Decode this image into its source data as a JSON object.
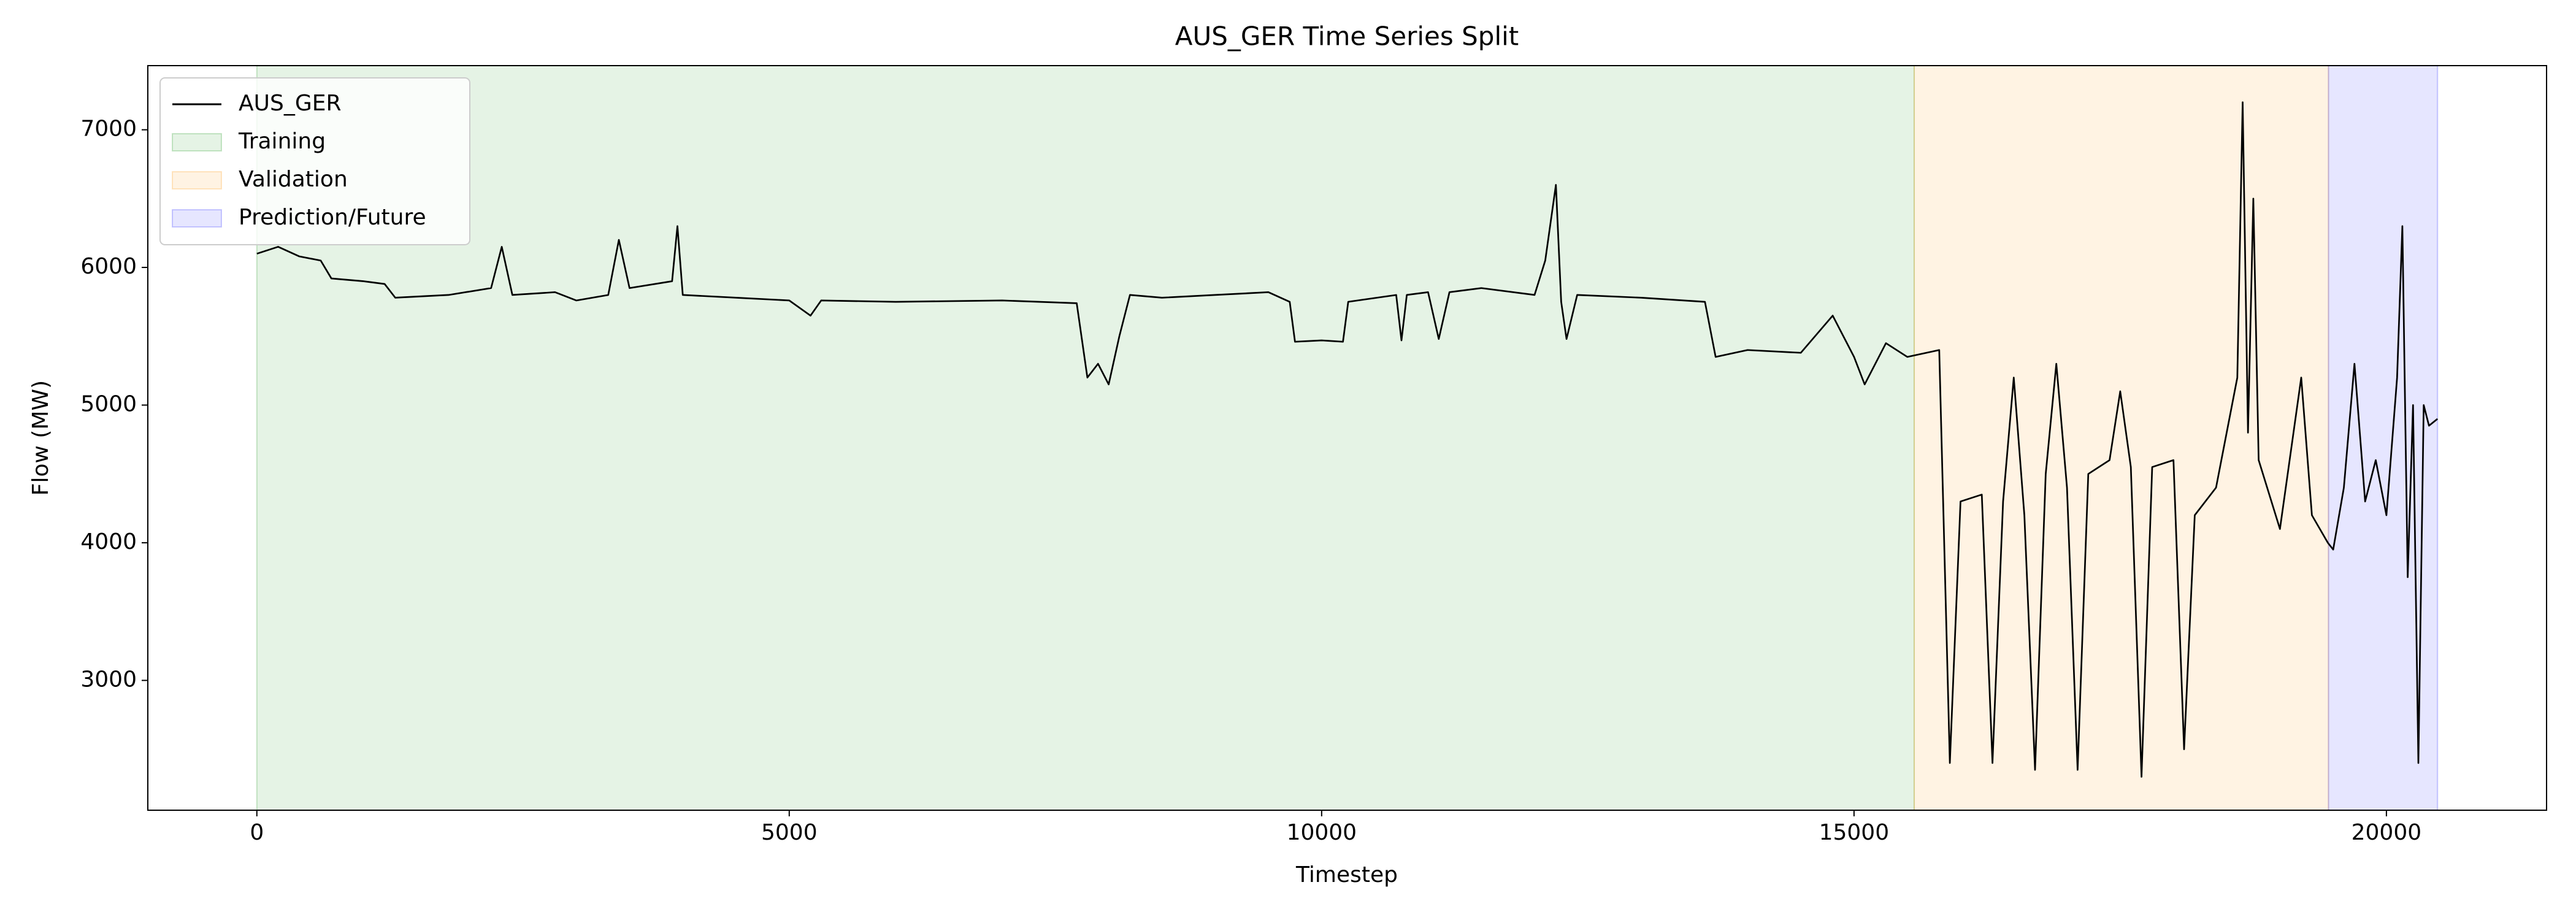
{
  "chart_data": {
    "type": "line",
    "title": "AUS_GER Time Series Split",
    "x_label": "Timestep",
    "y_label": "Flow (MW)",
    "xlim": [
      -1024,
      21504
    ],
    "xticks": [
      0,
      5000,
      10000,
      15000,
      20000
    ],
    "ylim": [
      2057,
      7466
    ],
    "yticks": [
      3000,
      4000,
      5000,
      6000,
      7000
    ],
    "legend": "upper left",
    "x": [
      0,
      200,
      400,
      600,
      700,
      1000,
      1200,
      1300,
      1800,
      2200,
      2300,
      2400,
      2800,
      3000,
      3300,
      3400,
      3500,
      3900,
      3950,
      4000,
      4500,
      5000,
      5200,
      5300,
      6000,
      7000,
      7700,
      7800,
      7900,
      8000,
      8100,
      8200,
      8500,
      9000,
      9500,
      9700,
      9750,
      10000,
      10200,
      10250,
      10700,
      10750,
      10800,
      11000,
      11100,
      11200,
      11500,
      12000,
      12100,
      12200,
      12250,
      12300,
      12400,
      13000,
      13600,
      13700,
      14000,
      14500,
      14800,
      15000,
      15100,
      15300,
      15500,
      15800,
      15900,
      16000,
      16200,
      16300,
      16400,
      16500,
      16600,
      16700,
      16800,
      16900,
      17000,
      17100,
      17200,
      17400,
      17500,
      17600,
      17700,
      17800,
      18000,
      18100,
      18200,
      18400,
      18600,
      18650,
      18700,
      18750,
      18800,
      19000,
      19200,
      19300,
      19450,
      19500,
      19600,
      19700,
      19800,
      19900,
      20000,
      20100,
      20150,
      20200,
      20250,
      20300,
      20350,
      20400,
      20480
    ],
    "series": [
      {
        "name": "AUS_GER",
        "color": "#000000",
        "values": [
          6100,
          6150,
          6080,
          6050,
          5920,
          5900,
          5880,
          5780,
          5800,
          5850,
          6150,
          5800,
          5820,
          5760,
          5800,
          6200,
          5850,
          5900,
          6300,
          5800,
          5780,
          5760,
          5650,
          5760,
          5750,
          5760,
          5740,
          5200,
          5300,
          5150,
          5500,
          5800,
          5780,
          5800,
          5820,
          5750,
          5460,
          5470,
          5460,
          5750,
          5800,
          5470,
          5800,
          5820,
          5480,
          5820,
          5850,
          5800,
          6050,
          6600,
          5750,
          5480,
          5800,
          5780,
          5750,
          5350,
          5400,
          5380,
          5650,
          5350,
          5150,
          5450,
          5350,
          5400,
          2400,
          4300,
          4350,
          2400,
          4300,
          5200,
          4200,
          2350,
          4500,
          5300,
          4400,
          2350,
          4500,
          4600,
          5100,
          4550,
          2300,
          4550,
          4600,
          2500,
          4200,
          4400,
          5200,
          7200,
          4800,
          6500,
          4600,
          4100,
          5200,
          4200,
          4000,
          3950,
          4400,
          5300,
          4300,
          4600,
          4200,
          5200,
          6300,
          3750,
          5000,
          2400,
          5000,
          4850,
          4900
        ]
      }
    ],
    "spans": [
      {
        "name": "Training",
        "color": "#2ca02c",
        "start": 0,
        "end": 15565
      },
      {
        "name": "Validation",
        "color": "#ff9f1a",
        "start": 15565,
        "end": 19456
      },
      {
        "name": "Prediction/Future",
        "color": "#3333ff",
        "start": 19456,
        "end": 20480
      }
    ]
  }
}
